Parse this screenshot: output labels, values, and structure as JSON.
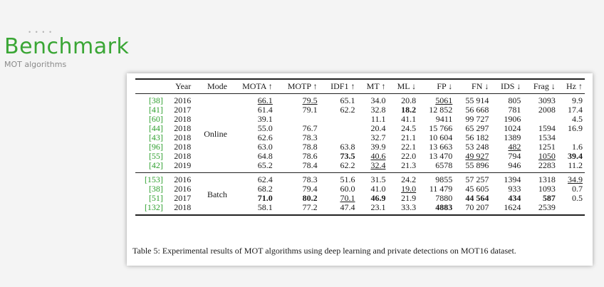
{
  "header": {
    "dots": "• • • •",
    "title": "Benchmark",
    "subtitle": "MOT algorithms"
  },
  "table": {
    "columns": [
      "",
      "Year",
      "Mode",
      "MOTA ↑",
      "MOTP ↑",
      "IDF1 ↑",
      "MT ↑",
      "ML ↓",
      "FP ↓",
      "FN ↓",
      "IDS ↓",
      "Frag ↓",
      "Hz ↑"
    ],
    "groups": [
      {
        "mode": "Online",
        "rows": [
          {
            "ref": "[38]",
            "year": "2016",
            "MOTA": "66.1",
            "MOTP": "79.5",
            "IDF1": "65.1",
            "MT": "34.0",
            "ML": "20.8",
            "FP": "5061",
            "FN": "55 914",
            "IDS": "805",
            "Frag": "3093",
            "Hz": "9.9"
          },
          {
            "ref": "[41]",
            "year": "2017",
            "MOTA": "61.4",
            "MOTP": "79.1",
            "IDF1": "62.2",
            "MT": "32.8",
            "ML": "18.2",
            "FP": "12 852",
            "FN": "56 668",
            "IDS": "781",
            "Frag": "2008",
            "Hz": "17.4"
          },
          {
            "ref": "[60]",
            "year": "2018",
            "MOTA": "39.1",
            "MOTP": "",
            "IDF1": "",
            "MT": "11.1",
            "ML": "41.1",
            "FP": "9411",
            "FN": "99 727",
            "IDS": "1906",
            "Frag": "",
            "Hz": "4.5"
          },
          {
            "ref": "[44]",
            "year": "2018",
            "MOTA": "55.0",
            "MOTP": "76.7",
            "IDF1": "",
            "MT": "20.4",
            "ML": "24.5",
            "FP": "15 766",
            "FN": "65 297",
            "IDS": "1024",
            "Frag": "1594",
            "Hz": "16.9"
          },
          {
            "ref": "[43]",
            "year": "2018",
            "MOTA": "62.6",
            "MOTP": "78.3",
            "IDF1": "",
            "MT": "32.7",
            "ML": "21.1",
            "FP": "10 604",
            "FN": "56 182",
            "IDS": "1389",
            "Frag": "1534",
            "Hz": ""
          },
          {
            "ref": "[96]",
            "year": "2018",
            "MOTA": "63.0",
            "MOTP": "78.8",
            "IDF1": "63.8",
            "MT": "39.9",
            "ML": "22.1",
            "FP": "13 663",
            "FN": "53 248",
            "IDS": "482",
            "Frag": "1251",
            "Hz": "1.6"
          },
          {
            "ref": "[55]",
            "year": "2018",
            "MOTA": "64.8",
            "MOTP": "78.6",
            "IDF1": "73.5",
            "MT": "40.6",
            "ML": "22.0",
            "FP": "13 470",
            "FN": "49 927",
            "IDS": "794",
            "Frag": "1050",
            "Hz": "39.4"
          },
          {
            "ref": "[42]",
            "year": "2019",
            "MOTA": "65.2",
            "MOTP": "78.4",
            "IDF1": "62.2",
            "MT": "32.4",
            "ML": "21.3",
            "FP": "6578",
            "FN": "55 896",
            "IDS": "946",
            "Frag": "2283",
            "Hz": "11.2"
          }
        ]
      },
      {
        "mode": "Batch",
        "rows": [
          {
            "ref": "[153]",
            "year": "2016",
            "MOTA": "62.4",
            "MOTP": "78.3",
            "IDF1": "51.6",
            "MT": "31.5",
            "ML": "24.2",
            "FP": "9855",
            "FN": "57 257",
            "IDS": "1394",
            "Frag": "1318",
            "Hz": "34.9"
          },
          {
            "ref": "[38]",
            "year": "2016",
            "MOTA": "68.2",
            "MOTP": "79.4",
            "IDF1": "60.0",
            "MT": "41.0",
            "ML": "19.0",
            "FP": "11 479",
            "FN": "45 605",
            "IDS": "933",
            "Frag": "1093",
            "Hz": "0.7"
          },
          {
            "ref": "[51]",
            "year": "2017",
            "MOTA": "71.0",
            "MOTP": "80.2",
            "IDF1": "70.1",
            "MT": "46.9",
            "ML": "21.9",
            "FP": "7880",
            "FN": "44 564",
            "IDS": "434",
            "Frag": "587",
            "Hz": "0.5"
          },
          {
            "ref": "[132]",
            "year": "2018",
            "MOTA": "58.1",
            "MOTP": "77.2",
            "IDF1": "47.4",
            "MT": "23.1",
            "ML": "33.3",
            "FP": "4883",
            "FN": "70 207",
            "IDS": "1624",
            "Frag": "2539",
            "Hz": ""
          }
        ]
      }
    ],
    "bold": [
      [
        0,
        1,
        "ML"
      ],
      [
        0,
        6,
        "IDF1"
      ],
      [
        0,
        6,
        "Hz"
      ],
      [
        1,
        2,
        "MOTA"
      ],
      [
        1,
        2,
        "MOTP"
      ],
      [
        1,
        2,
        "MT"
      ],
      [
        1,
        2,
        "FN"
      ],
      [
        1,
        2,
        "IDS"
      ],
      [
        1,
        2,
        "Frag"
      ],
      [
        1,
        3,
        "FP"
      ]
    ],
    "underline": [
      [
        0,
        0,
        "MOTA"
      ],
      [
        0,
        0,
        "MOTP"
      ],
      [
        0,
        0,
        "FP"
      ],
      [
        0,
        5,
        "IDS"
      ],
      [
        0,
        6,
        "MT"
      ],
      [
        0,
        6,
        "FN"
      ],
      [
        0,
        6,
        "Frag"
      ],
      [
        0,
        7,
        "MT"
      ],
      [
        1,
        0,
        "Hz"
      ],
      [
        1,
        1,
        "ML"
      ],
      [
        1,
        2,
        "IDF1"
      ]
    ],
    "caption": "Table 5: Experimental results of MOT algorithms using deep learning and private detections on MOT16 dataset."
  },
  "colors": {
    "title": "#3aa635",
    "ref": "#2fa02f"
  }
}
